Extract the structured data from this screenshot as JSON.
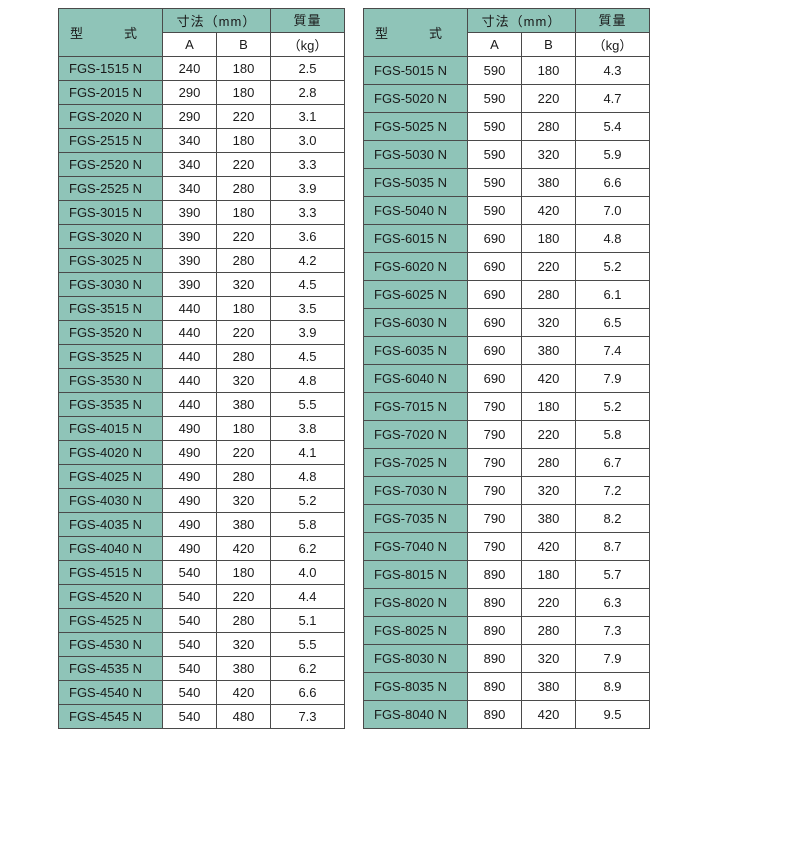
{
  "colors": {
    "teal": "#8fc4b8",
    "border": "#4a4a4a",
    "bg": "#ffffff",
    "text": "#1a1a1a"
  },
  "headers": {
    "model": "型　式",
    "dim": "寸法（mm）",
    "dimA": "A",
    "dimB": "B",
    "mass_top": "質量",
    "mass_bot": "（kg）"
  },
  "left": {
    "rows": [
      {
        "m": "FGS-1515 N",
        "a": "240",
        "b": "180",
        "w": "2.5"
      },
      {
        "m": "FGS-2015 N",
        "a": "290",
        "b": "180",
        "w": "2.8"
      },
      {
        "m": "FGS-2020 N",
        "a": "290",
        "b": "220",
        "w": "3.1"
      },
      {
        "m": "FGS-2515 N",
        "a": "340",
        "b": "180",
        "w": "3.0"
      },
      {
        "m": "FGS-2520 N",
        "a": "340",
        "b": "220",
        "w": "3.3"
      },
      {
        "m": "FGS-2525 N",
        "a": "340",
        "b": "280",
        "w": "3.9"
      },
      {
        "m": "FGS-3015 N",
        "a": "390",
        "b": "180",
        "w": "3.3"
      },
      {
        "m": "FGS-3020 N",
        "a": "390",
        "b": "220",
        "w": "3.6"
      },
      {
        "m": "FGS-3025 N",
        "a": "390",
        "b": "280",
        "w": "4.2"
      },
      {
        "m": "FGS-3030 N",
        "a": "390",
        "b": "320",
        "w": "4.5"
      },
      {
        "m": "FGS-3515 N",
        "a": "440",
        "b": "180",
        "w": "3.5"
      },
      {
        "m": "FGS-3520 N",
        "a": "440",
        "b": "220",
        "w": "3.9"
      },
      {
        "m": "FGS-3525 N",
        "a": "440",
        "b": "280",
        "w": "4.5"
      },
      {
        "m": "FGS-3530 N",
        "a": "440",
        "b": "320",
        "w": "4.8"
      },
      {
        "m": "FGS-3535 N",
        "a": "440",
        "b": "380",
        "w": "5.5"
      },
      {
        "m": "FGS-4015 N",
        "a": "490",
        "b": "180",
        "w": "3.8"
      },
      {
        "m": "FGS-4020 N",
        "a": "490",
        "b": "220",
        "w": "4.1"
      },
      {
        "m": "FGS-4025 N",
        "a": "490",
        "b": "280",
        "w": "4.8"
      },
      {
        "m": "FGS-4030 N",
        "a": "490",
        "b": "320",
        "w": "5.2"
      },
      {
        "m": "FGS-4035 N",
        "a": "490",
        "b": "380",
        "w": "5.8"
      },
      {
        "m": "FGS-4040 N",
        "a": "490",
        "b": "420",
        "w": "6.2"
      },
      {
        "m": "FGS-4515 N",
        "a": "540",
        "b": "180",
        "w": "4.0"
      },
      {
        "m": "FGS-4520 N",
        "a": "540",
        "b": "220",
        "w": "4.4"
      },
      {
        "m": "FGS-4525 N",
        "a": "540",
        "b": "280",
        "w": "5.1"
      },
      {
        "m": "FGS-4530 N",
        "a": "540",
        "b": "320",
        "w": "5.5"
      },
      {
        "m": "FGS-4535 N",
        "a": "540",
        "b": "380",
        "w": "6.2"
      },
      {
        "m": "FGS-4540 N",
        "a": "540",
        "b": "420",
        "w": "6.6"
      },
      {
        "m": "FGS-4545 N",
        "a": "540",
        "b": "480",
        "w": "7.3"
      }
    ]
  },
  "right": {
    "rows": [
      {
        "m": "FGS-5015 N",
        "a": "590",
        "b": "180",
        "w": "4.3"
      },
      {
        "m": "FGS-5020 N",
        "a": "590",
        "b": "220",
        "w": "4.7"
      },
      {
        "m": "FGS-5025 N",
        "a": "590",
        "b": "280",
        "w": "5.4"
      },
      {
        "m": "FGS-5030 N",
        "a": "590",
        "b": "320",
        "w": "5.9"
      },
      {
        "m": "FGS-5035 N",
        "a": "590",
        "b": "380",
        "w": "6.6"
      },
      {
        "m": "FGS-5040 N",
        "a": "590",
        "b": "420",
        "w": "7.0"
      },
      {
        "m": "FGS-6015 N",
        "a": "690",
        "b": "180",
        "w": "4.8"
      },
      {
        "m": "FGS-6020 N",
        "a": "690",
        "b": "220",
        "w": "5.2"
      },
      {
        "m": "FGS-6025 N",
        "a": "690",
        "b": "280",
        "w": "6.1"
      },
      {
        "m": "FGS-6030 N",
        "a": "690",
        "b": "320",
        "w": "6.5"
      },
      {
        "m": "FGS-6035 N",
        "a": "690",
        "b": "380",
        "w": "7.4"
      },
      {
        "m": "FGS-6040 N",
        "a": "690",
        "b": "420",
        "w": "7.9"
      },
      {
        "m": "FGS-7015 N",
        "a": "790",
        "b": "180",
        "w": "5.2"
      },
      {
        "m": "FGS-7020 N",
        "a": "790",
        "b": "220",
        "w": "5.8"
      },
      {
        "m": "FGS-7025 N",
        "a": "790",
        "b": "280",
        "w": "6.7"
      },
      {
        "m": "FGS-7030 N",
        "a": "790",
        "b": "320",
        "w": "7.2"
      },
      {
        "m": "FGS-7035 N",
        "a": "790",
        "b": "380",
        "w": "8.2"
      },
      {
        "m": "FGS-7040 N",
        "a": "790",
        "b": "420",
        "w": "8.7"
      },
      {
        "m": "FGS-8015 N",
        "a": "890",
        "b": "180",
        "w": "5.7"
      },
      {
        "m": "FGS-8020 N",
        "a": "890",
        "b": "220",
        "w": "6.3"
      },
      {
        "m": "FGS-8025 N",
        "a": "890",
        "b": "280",
        "w": "7.3"
      },
      {
        "m": "FGS-8030 N",
        "a": "890",
        "b": "320",
        "w": "7.9"
      },
      {
        "m": "FGS-8035 N",
        "a": "890",
        "b": "380",
        "w": "8.9"
      },
      {
        "m": "FGS-8040 N",
        "a": "890",
        "b": "420",
        "w": "9.5"
      }
    ]
  }
}
